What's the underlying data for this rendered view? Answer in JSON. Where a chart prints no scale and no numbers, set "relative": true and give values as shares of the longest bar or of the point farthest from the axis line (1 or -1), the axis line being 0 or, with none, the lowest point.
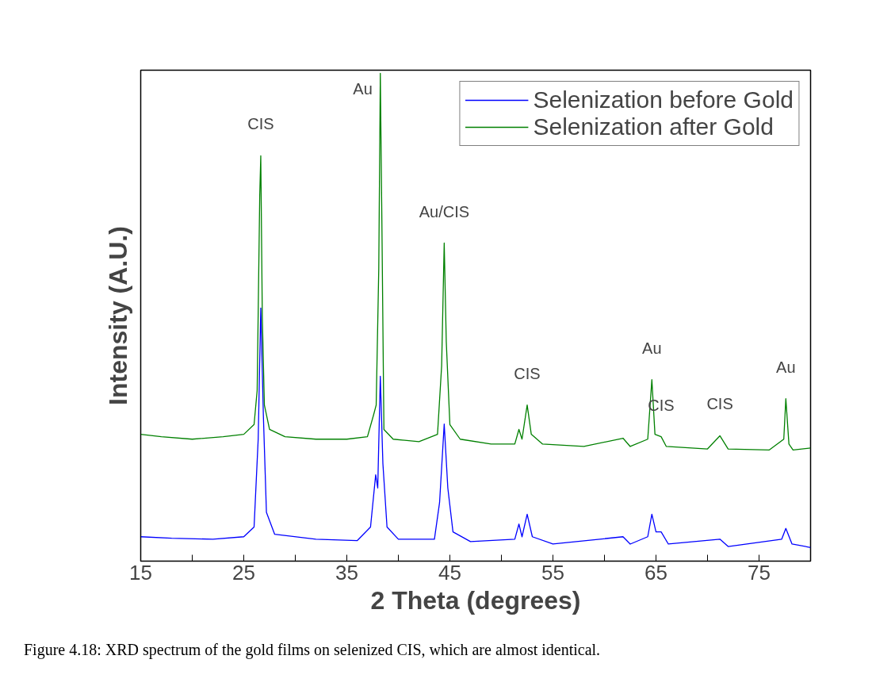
{
  "chart_data": {
    "type": "line",
    "relative": true,
    "xlabel": "2 Theta (degrees)",
    "ylabel": "Intensity (A.U.)",
    "xlim": [
      15,
      80
    ],
    "xticks": [
      15,
      {
        "value": 20,
        "label": null
      },
      25,
      {
        "value": 30,
        "label": null
      },
      35,
      {
        "value": 40,
        "label": null
      },
      45,
      {
        "value": 50,
        "label": null
      },
      55,
      {
        "value": 60,
        "label": null
      },
      65,
      {
        "value": 70,
        "label": null
      },
      75
    ],
    "legend": "top right",
    "grid": false,
    "series": [
      {
        "name": "Selenization before Gold",
        "color": "#0000ff",
        "x": [
          15,
          18,
          22,
          25,
          26,
          26.4,
          26.65,
          26.9,
          27.2,
          28,
          32,
          36,
          37.3,
          37.8,
          38.0,
          38.25,
          38.5,
          38.9,
          40,
          43.5,
          44,
          44.45,
          44.8,
          45.3,
          47,
          51.3,
          51.7,
          52.0,
          52.5,
          53.0,
          55,
          61.8,
          62.5,
          64.2,
          64.6,
          65.0,
          65.5,
          66.2,
          71.2,
          72,
          77.2,
          77.6,
          78.2,
          80
        ],
        "values": [
          0.05,
          0.047,
          0.045,
          0.05,
          0.07,
          0.25,
          0.519,
          0.3,
          0.1,
          0.055,
          0.045,
          0.042,
          0.07,
          0.177,
          0.15,
          0.379,
          0.2,
          0.07,
          0.045,
          0.045,
          0.12,
          0.281,
          0.15,
          0.06,
          0.04,
          0.045,
          0.076,
          0.05,
          0.096,
          0.05,
          0.035,
          0.05,
          0.035,
          0.05,
          0.096,
          0.06,
          0.06,
          0.035,
          0.045,
          0.03,
          0.045,
          0.067,
          0.035,
          0.028
        ]
      },
      {
        "name": "Selenization after Gold",
        "color": "#008000",
        "x": [
          15,
          17,
          20,
          23,
          25,
          26,
          26.3,
          26.55,
          26.65,
          26.8,
          27.0,
          27.5,
          29,
          32,
          35,
          37,
          37.6,
          37.85,
          38.1,
          38.25,
          38.4,
          38.6,
          39.5,
          42,
          43.8,
          44.2,
          44.45,
          44.65,
          45,
          46,
          49,
          51.3,
          51.7,
          52.0,
          52.5,
          52.9,
          54,
          58,
          61.8,
          62.5,
          64.2,
          64.6,
          64.9,
          65.5,
          66,
          70,
          71.2,
          72,
          76,
          77.4,
          77.6,
          77.9,
          78.3,
          80
        ],
        "values": [
          0.26,
          0.255,
          0.25,
          0.255,
          0.26,
          0.28,
          0.35,
          0.75,
          0.831,
          0.5,
          0.32,
          0.27,
          0.255,
          0.25,
          0.25,
          0.255,
          0.3,
          0.32,
          0.6,
          1.0,
          0.7,
          0.27,
          0.25,
          0.245,
          0.26,
          0.4,
          0.652,
          0.45,
          0.28,
          0.25,
          0.24,
          0.24,
          0.27,
          0.25,
          0.32,
          0.26,
          0.24,
          0.235,
          0.252,
          0.235,
          0.25,
          0.372,
          0.26,
          0.255,
          0.235,
          0.23,
          0.257,
          0.23,
          0.228,
          0.25,
          0.333,
          0.24,
          0.228,
          0.232
        ]
      }
    ],
    "annotations": [
      {
        "text": "CIS",
        "x": 26.65,
        "y": 0.831
      },
      {
        "text": "Au",
        "x": 38.25,
        "y": 1.0
      },
      {
        "text": "Au/CIS",
        "x": 44.45,
        "y": 0.652
      },
      {
        "text": "CIS",
        "x": 52.5,
        "y": 0.32
      },
      {
        "text": "Au",
        "x": 64.6,
        "y": 0.372
      },
      {
        "text": "CIS",
        "x": 65.5,
        "y": 0.255
      },
      {
        "text": "CIS",
        "x": 71.2,
        "y": 0.257
      },
      {
        "text": "Au",
        "x": 77.6,
        "y": 0.333
      },
      "Figure 4.18: XRD spectrum of the gold films on selenized CIS, which are almost identical."
    ]
  }
}
